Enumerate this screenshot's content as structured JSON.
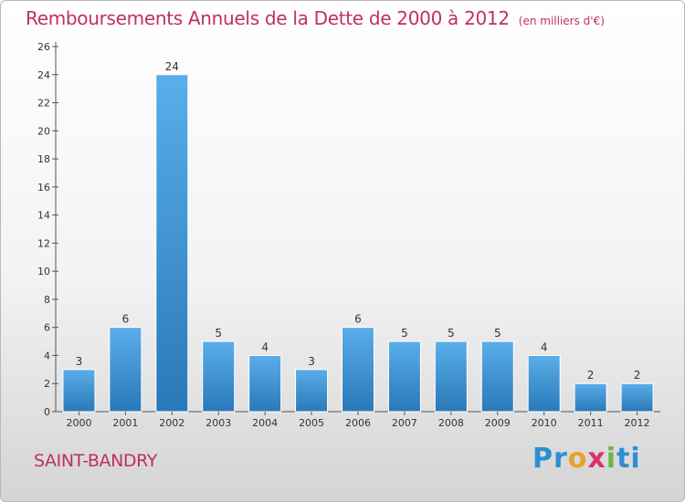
{
  "chart_data": {
    "type": "bar",
    "title": "Remboursements Annuels de la Dette de 2000 à 2012",
    "subtitle": "(en milliers d'€)",
    "xlabel": "",
    "ylabel": "",
    "categories": [
      "2000",
      "2001",
      "2002",
      "2003",
      "2004",
      "2005",
      "2006",
      "2007",
      "2008",
      "2009",
      "2010",
      "2011",
      "2012"
    ],
    "values": [
      3,
      6,
      24,
      5,
      4,
      3,
      6,
      5,
      5,
      5,
      4,
      2,
      2
    ],
    "ylim": [
      0,
      26
    ],
    "yticks": [
      "0",
      "2",
      "4",
      "6",
      "8",
      "10",
      "12",
      "14",
      "16",
      "18",
      "20",
      "22",
      "24",
      "26"
    ],
    "grid": false,
    "bar_color_top": "#5aaee9",
    "bar_color_bottom": "#2a78b8"
  },
  "footer": {
    "town": "SAINT-BANDRY",
    "logo_letters": [
      "Pr",
      "o",
      "x",
      "i",
      "ti"
    ]
  }
}
